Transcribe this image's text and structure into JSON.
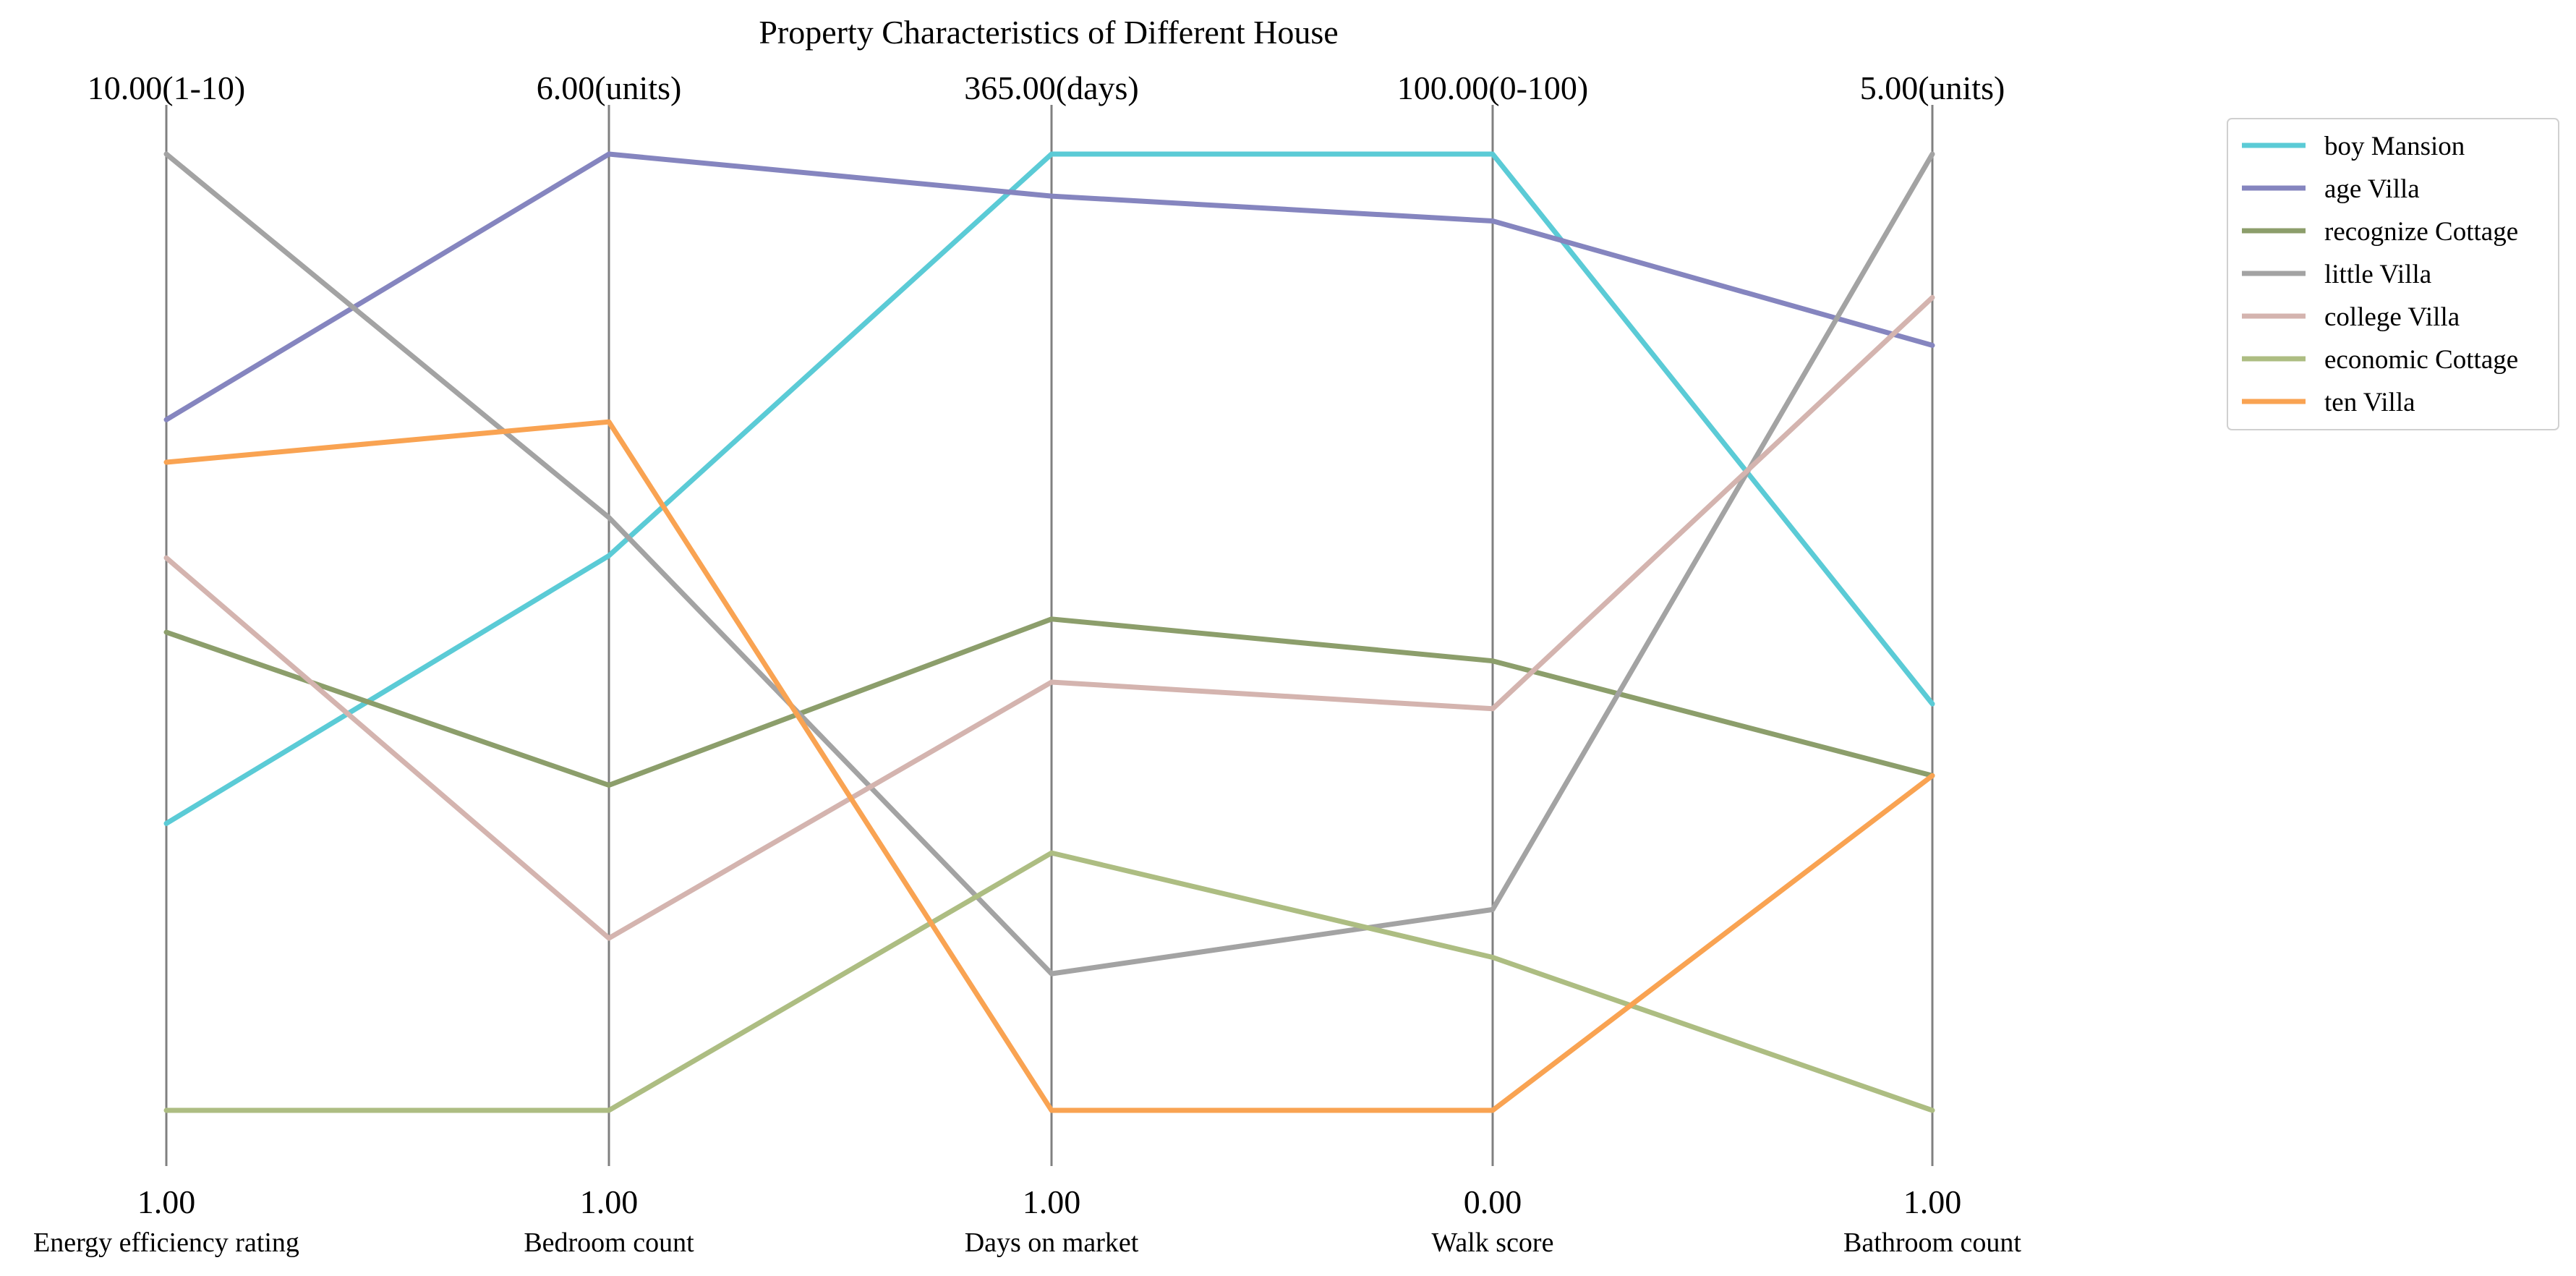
{
  "chart_data": {
    "type": "parallel_coordinates",
    "title": "Property Characteristics of Different House",
    "axes": [
      {
        "name": "Energy efficiency rating",
        "unit": "(1-10)",
        "min": 1,
        "max": 10,
        "min_label": "1.00",
        "max_label": "10.00(1-10)"
      },
      {
        "name": "Bedroom count",
        "unit": "(units)",
        "min": 1,
        "max": 6,
        "min_label": "1.00",
        "max_label": "6.00(units)"
      },
      {
        "name": "Days on market",
        "unit": "(days)",
        "min": 1,
        "max": 365,
        "min_label": "1.00",
        "max_label": "365.00(days)"
      },
      {
        "name": "Walk score",
        "unit": "(0-100)",
        "min": 0,
        "max": 100,
        "min_label": "0.00",
        "max_label": "100.00(0-100)"
      },
      {
        "name": "Bathroom count",
        "unit": "(units)",
        "min": 1,
        "max": 5,
        "min_label": "1.00",
        "max_label": "5.00(units)"
      }
    ],
    "series": [
      {
        "name": "boy Mansion",
        "color": "#5bcbd6",
        "values": [
          3.7,
          3.9,
          365,
          100,
          2.7
        ]
      },
      {
        "name": "age Villa",
        "color": "#8585bf",
        "values": [
          7.5,
          6,
          349,
          93,
          4.2
        ]
      },
      {
        "name": "recognize Cottage",
        "color": "#8c9e6b",
        "values": [
          5.5,
          2.7,
          188,
          47,
          2.4
        ]
      },
      {
        "name": "little Villa",
        "color": "#a3a3a3",
        "values": [
          10,
          4.1,
          53,
          21,
          5
        ]
      },
      {
        "name": "college Villa",
        "color": "#d4b4af",
        "values": [
          6.2,
          1.9,
          164,
          42,
          4.4
        ]
      },
      {
        "name": "economic Cottage",
        "color": "#adbd82",
        "values": [
          1,
          1,
          99,
          16,
          1
        ]
      },
      {
        "name": "ten Villa",
        "color": "#f9a352",
        "values": [
          7.1,
          4.6,
          1,
          0,
          2.4
        ]
      }
    ],
    "legend_position": "upper-right-outside",
    "grid": false
  }
}
